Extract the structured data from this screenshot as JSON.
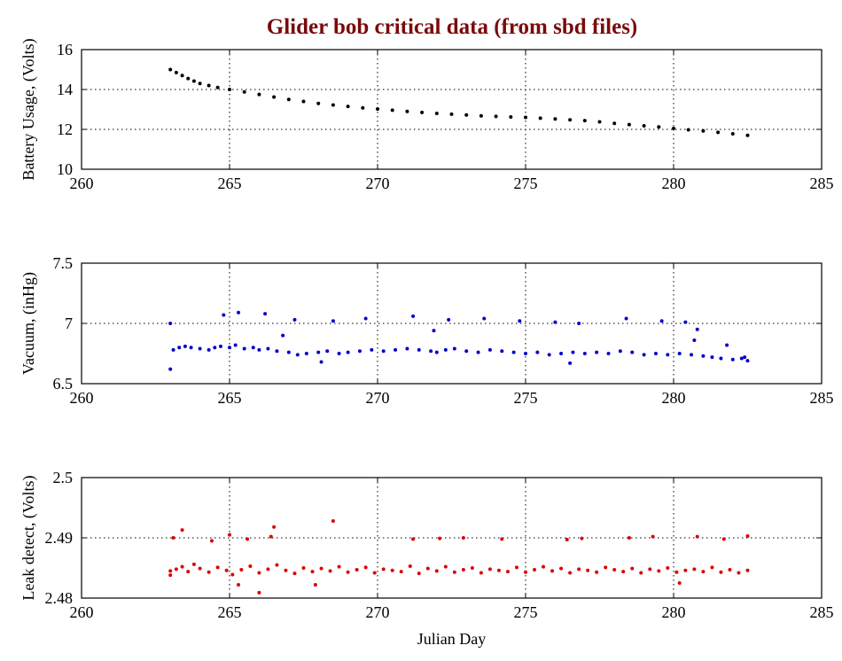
{
  "page": {
    "title": "Glider bob critical data (from sbd files)",
    "title_color": "#7a0a0a"
  },
  "chart_data": [
    {
      "type": "scatter",
      "name": "battery",
      "ylabel": "Battery Usage, (Volts)",
      "xlabel": "",
      "xlim": [
        260,
        285
      ],
      "ylim": [
        10,
        16
      ],
      "xticks": [
        "260",
        "265",
        "270",
        "275",
        "280",
        "285"
      ],
      "yticks": [
        "10",
        "12",
        "14",
        "16"
      ],
      "grid_x": [
        265,
        270,
        275,
        280
      ],
      "grid_y": [
        12,
        14
      ],
      "color": "#000000",
      "series": [
        {
          "name": "battery",
          "x": [
            263.0,
            263.2,
            263.4,
            263.6,
            263.8,
            264.0,
            264.3,
            264.6,
            265.0,
            265.5,
            266.0,
            266.5,
            267.0,
            267.5,
            268.0,
            268.5,
            269.0,
            269.5,
            270.0,
            270.5,
            271.0,
            271.5,
            272.0,
            272.5,
            273.0,
            273.5,
            274.0,
            274.5,
            275.0,
            275.5,
            276.0,
            276.5,
            277.0,
            277.5,
            278.0,
            278.5,
            279.0,
            279.5,
            280.0,
            280.5,
            281.0,
            281.5,
            282.0,
            282.5
          ],
          "y": [
            15.0,
            14.85,
            14.7,
            14.55,
            14.42,
            14.3,
            14.2,
            14.1,
            14.0,
            13.88,
            13.75,
            13.62,
            13.5,
            13.4,
            13.3,
            13.22,
            13.15,
            13.08,
            13.02,
            12.96,
            12.9,
            12.85,
            12.8,
            12.76,
            12.72,
            12.68,
            12.65,
            12.62,
            12.6,
            12.56,
            12.52,
            12.48,
            12.44,
            12.38,
            12.3,
            12.24,
            12.18,
            12.12,
            12.05,
            11.98,
            11.92,
            11.85,
            11.78,
            11.7
          ]
        }
      ]
    },
    {
      "type": "scatter",
      "name": "vacuum",
      "ylabel": "Vacuum, (inHg)",
      "xlabel": "",
      "xlim": [
        260,
        285
      ],
      "ylim": [
        6.5,
        7.5
      ],
      "xticks": [
        "260",
        "265",
        "270",
        "275",
        "280",
        "285"
      ],
      "yticks": [
        "6.5",
        "7",
        "7.5"
      ],
      "grid_x": [
        265,
        270,
        275,
        280
      ],
      "grid_y": [
        7
      ],
      "color": "#0000cc",
      "series": [
        {
          "name": "vacuum",
          "x": [
            263.0,
            263.1,
            263.3,
            263.5,
            263.7,
            264.0,
            264.3,
            264.5,
            264.7,
            265.0,
            265.2,
            265.5,
            265.8,
            266.0,
            266.3,
            266.6,
            267.0,
            267.3,
            267.6,
            268.0,
            268.3,
            268.7,
            269.0,
            269.4,
            269.8,
            270.2,
            270.6,
            271.0,
            271.4,
            271.8,
            272.0,
            272.3,
            272.6,
            273.0,
            273.4,
            273.8,
            274.2,
            274.6,
            275.0,
            275.4,
            275.8,
            276.2,
            276.6,
            277.0,
            277.4,
            277.8,
            278.2,
            278.6,
            279.0,
            279.4,
            279.8,
            280.2,
            280.6,
            281.0,
            281.3,
            281.6,
            282.0,
            282.3,
            282.5,
            264.8,
            265.3,
            266.2,
            267.2,
            268.5,
            269.6,
            271.2,
            272.4,
            273.6,
            274.8,
            276.0,
            276.8,
            278.4,
            279.6,
            280.4,
            280.8,
            281.8,
            282.4,
            263.0,
            266.8,
            268.1,
            271.9,
            276.5,
            280.7
          ],
          "y": [
            6.62,
            6.78,
            6.8,
            6.81,
            6.8,
            6.79,
            6.78,
            6.8,
            6.81,
            6.8,
            6.82,
            6.79,
            6.8,
            6.78,
            6.79,
            6.77,
            6.76,
            6.74,
            6.75,
            6.76,
            6.77,
            6.75,
            6.76,
            6.77,
            6.78,
            6.77,
            6.78,
            6.79,
            6.78,
            6.77,
            6.76,
            6.78,
            6.79,
            6.77,
            6.76,
            6.78,
            6.77,
            6.76,
            6.75,
            6.76,
            6.74,
            6.75,
            6.76,
            6.75,
            6.76,
            6.75,
            6.77,
            6.76,
            6.74,
            6.75,
            6.74,
            6.75,
            6.74,
            6.73,
            6.72,
            6.71,
            6.7,
            6.71,
            6.69,
            7.07,
            7.09,
            7.08,
            7.03,
            7.02,
            7.04,
            7.06,
            7.03,
            7.04,
            7.02,
            7.01,
            7.0,
            7.04,
            7.02,
            7.01,
            6.95,
            6.82,
            6.72,
            7.0,
            6.9,
            6.68,
            6.94,
            6.67,
            6.86
          ]
        }
      ]
    },
    {
      "type": "scatter",
      "name": "leak",
      "ylabel": "Leak detect, (Volts)",
      "xlabel": "Julian Day",
      "xlim": [
        260,
        285
      ],
      "ylim": [
        2.48,
        2.5
      ],
      "xticks": [
        "260",
        "265",
        "270",
        "275",
        "280",
        "285"
      ],
      "yticks": [
        "2.48",
        "2.49",
        "2.5"
      ],
      "grid_x": [
        265,
        270,
        275,
        280
      ],
      "grid_y": [
        2.49
      ],
      "color": "#dd0000",
      "series": [
        {
          "name": "leak",
          "x": [
            263.0,
            263.2,
            263.4,
            263.6,
            263.8,
            264.0,
            264.3,
            264.6,
            264.9,
            265.1,
            265.4,
            265.7,
            266.0,
            266.3,
            266.6,
            266.9,
            267.2,
            267.5,
            267.8,
            268.1,
            268.4,
            268.7,
            269.0,
            269.3,
            269.6,
            269.9,
            270.2,
            270.5,
            270.8,
            271.1,
            271.4,
            271.7,
            272.0,
            272.3,
            272.6,
            272.9,
            273.2,
            273.5,
            273.8,
            274.1,
            274.4,
            274.7,
            275.0,
            275.3,
            275.6,
            275.9,
            276.2,
            276.5,
            276.8,
            277.1,
            277.4,
            277.7,
            278.0,
            278.3,
            278.6,
            278.9,
            279.2,
            279.5,
            279.8,
            280.1,
            280.4,
            280.7,
            281.0,
            281.3,
            281.6,
            281.9,
            282.2,
            282.5,
            263.1,
            263.4,
            264.4,
            265.0,
            265.6,
            266.4,
            266.5,
            268.5,
            271.2,
            272.1,
            272.9,
            274.2,
            276.4,
            276.9,
            278.5,
            279.3,
            280.8,
            281.7,
            282.5,
            265.3,
            266.0,
            267.9,
            263.0,
            280.2
          ],
          "y": [
            2.4845,
            2.4848,
            2.4852,
            2.4844,
            2.4856,
            2.4849,
            2.4843,
            2.4851,
            2.4846,
            2.4839,
            2.4847,
            2.4853,
            2.4842,
            2.4848,
            2.4855,
            2.4846,
            2.4841,
            2.485,
            2.4844,
            2.4849,
            2.4845,
            2.4852,
            2.4843,
            2.4847,
            2.4851,
            2.4842,
            2.4848,
            2.4846,
            2.4844,
            2.4853,
            2.4841,
            2.4849,
            2.4845,
            2.4852,
            2.4843,
            2.4847,
            2.485,
            2.4842,
            2.4848,
            2.4846,
            2.4844,
            2.4851,
            2.4843,
            2.4847,
            2.4852,
            2.4845,
            2.4849,
            2.4842,
            2.4848,
            2.4846,
            2.4843,
            2.4851,
            2.4847,
            2.4844,
            2.4849,
            2.4842,
            2.4848,
            2.4845,
            2.485,
            2.4843,
            2.4846,
            2.4848,
            2.4844,
            2.4851,
            2.4843,
            2.4847,
            2.4842,
            2.4846,
            2.49,
            2.4913,
            2.4895,
            2.4905,
            2.4898,
            2.4902,
            2.4918,
            2.4928,
            2.4898,
            2.4899,
            2.49,
            2.4898,
            2.4897,
            2.4899,
            2.49,
            2.4902,
            2.4902,
            2.4898,
            2.4903,
            2.4822,
            2.4809,
            2.4822,
            2.4838,
            2.4825
          ]
        }
      ]
    }
  ]
}
